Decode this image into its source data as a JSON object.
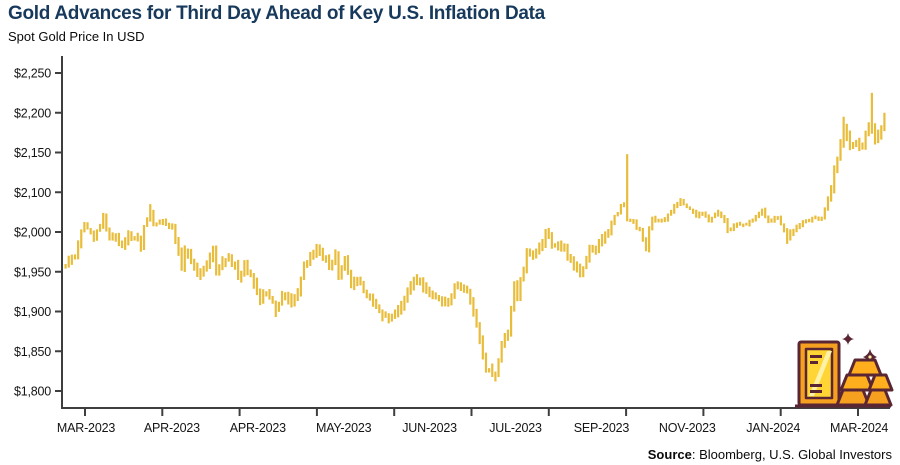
{
  "header": {
    "title": "Gold Advances for Third Day Ahead of Key U.S. Inflation Data",
    "subtitle": "Spot Gold Price In USD"
  },
  "source": {
    "label": "Source",
    "separator": ": ",
    "text": "Bloomberg, U.S. Global Investors"
  },
  "colors": {
    "navy": "#17395C",
    "gold_bar": "#E9BD3C",
    "axis": "#3E3E3E",
    "tick_text": "#151515",
    "icon_outline": "#5A2633",
    "icon_orange": "#F6A01F",
    "icon_amber": "#FFAF1E",
    "icon_yellow": "#FFD435",
    "icon_light": "#FFF2A6"
  },
  "icon": {
    "name": "gold-bars-icon",
    "elements": [
      "standing-gold-bar",
      "stacked-gold-ingots",
      "sparkles"
    ]
  },
  "chart_data": {
    "type": "bar",
    "subtype": "daily-high-low-range",
    "title": "Gold Advances for Third Day Ahead of Key U.S. Inflation Data",
    "subtitle_ylabel": "Spot Gold Price In USD",
    "grid": false,
    "legend": "none",
    "y_ticks": [
      {
        "label": "$2,250",
        "value": 2250
      },
      {
        "label": "$2,200",
        "value": 2200
      },
      {
        "label": "$2,150",
        "value": 2150
      },
      {
        "label": "$2,100",
        "value": 2100
      },
      {
        "label": "$2,000",
        "value": 2000
      },
      {
        "label": "$1,950",
        "value": 1950
      },
      {
        "label": "$1,900",
        "value": 1900
      },
      {
        "label": "$1,850",
        "value": 1850
      },
      {
        "label": "$1,800",
        "value": 1800
      }
    ],
    "y_axis_note": "tick labels evenly spaced as printed; $2,050 label is skipped on the original",
    "x_tick_labels": [
      "MAR-2023",
      "APR-2023",
      "APR-2023",
      "MAY-2023",
      "JUN-2023",
      "JUL-2023",
      "SEP-2023",
      "NOV-2023",
      "JAN-2024",
      "MAR-2024"
    ],
    "x_range": {
      "start_date": "2023-03-28",
      "end_date": "2024-03-27"
    },
    "series": [
      {
        "name": "Spot Gold Price (USD)",
        "point_format": [
          "date",
          "close",
          "intraday_high_optional",
          "intraday_low_optional"
        ],
        "points": [
          [
            "2023-03-28",
            1957
          ],
          [
            "2023-03-29",
            1964
          ],
          [
            "2023-03-31",
            1969
          ],
          [
            "2023-04-03",
            1984
          ],
          [
            "2023-04-05",
            2020,
            2025
          ],
          [
            "2023-04-06",
            2008
          ],
          [
            "2023-04-10",
            1991
          ],
          [
            "2023-04-12",
            2014
          ],
          [
            "2023-04-13",
            2040,
            2048
          ],
          [
            "2023-04-14",
            2004
          ],
          [
            "2023-04-17",
            1995
          ],
          [
            "2023-04-19",
            1994
          ],
          [
            "2023-04-21",
            1983
          ],
          [
            "2023-04-25",
            1997
          ],
          [
            "2023-04-28",
            1990
          ],
          [
            "2023-05-01",
            1982
          ],
          [
            "2023-05-02",
            2016
          ],
          [
            "2023-05-04",
            2050,
            2070
          ],
          [
            "2023-05-05",
            2016
          ],
          [
            "2023-05-08",
            2021
          ],
          [
            "2023-05-10",
            2030
          ],
          [
            "2023-05-12",
            2011
          ],
          [
            "2023-05-15",
            2016
          ],
          [
            "2023-05-16",
            1989
          ],
          [
            "2023-05-18",
            1957
          ],
          [
            "2023-05-19",
            1977
          ],
          [
            "2023-05-22",
            1972
          ],
          [
            "2023-05-24",
            1957
          ],
          [
            "2023-05-26",
            1946
          ],
          [
            "2023-05-30",
            1959
          ],
          [
            "2023-06-01",
            1978
          ],
          [
            "2023-06-02",
            1948
          ],
          [
            "2023-06-06",
            1963
          ],
          [
            "2023-06-08",
            1966
          ],
          [
            "2023-06-12",
            1958
          ],
          [
            "2023-06-13",
            1943
          ],
          [
            "2023-06-15",
            1958
          ],
          [
            "2023-06-20",
            1936
          ],
          [
            "2023-06-22",
            1914
          ],
          [
            "2023-06-26",
            1923
          ],
          [
            "2023-06-29",
            1903,
            null,
            1893
          ],
          [
            "2023-07-03",
            1921
          ],
          [
            "2023-07-06",
            1911
          ],
          [
            "2023-07-10",
            1925
          ],
          [
            "2023-07-12",
            1957
          ],
          [
            "2023-07-13",
            1960
          ],
          [
            "2023-07-18",
            1978,
            1985
          ],
          [
            "2023-07-20",
            1969
          ],
          [
            "2023-07-24",
            1954
          ],
          [
            "2023-07-26",
            1972
          ],
          [
            "2023-07-27",
            1945
          ],
          [
            "2023-07-31",
            1965
          ],
          [
            "2023-08-02",
            1934
          ],
          [
            "2023-08-04",
            1942
          ],
          [
            "2023-08-08",
            1925
          ],
          [
            "2023-08-11",
            1913
          ],
          [
            "2023-08-15",
            1901
          ],
          [
            "2023-08-18",
            1889,
            null,
            1885
          ],
          [
            "2023-08-22",
            1897
          ],
          [
            "2023-08-25",
            1915
          ],
          [
            "2023-08-30",
            1942
          ],
          [
            "2023-09-01",
            1940
          ],
          [
            "2023-09-05",
            1926
          ],
          [
            "2023-09-08",
            1919
          ],
          [
            "2023-09-12",
            1913
          ],
          [
            "2023-09-14",
            1911
          ],
          [
            "2023-09-18",
            1934
          ],
          [
            "2023-09-20",
            1930
          ],
          [
            "2023-09-22",
            1925
          ],
          [
            "2023-09-26",
            1900
          ],
          [
            "2023-09-28",
            1864
          ],
          [
            "2023-10-02",
            1827
          ],
          [
            "2023-10-05",
            1820,
            null,
            1812
          ],
          [
            "2023-10-09",
            1861
          ],
          [
            "2023-10-11",
            1874
          ],
          [
            "2023-10-13",
            1932
          ],
          [
            "2023-10-16",
            1919
          ],
          [
            "2023-10-19",
            1974
          ],
          [
            "2023-10-23",
            1972
          ],
          [
            "2023-10-26",
            1985
          ],
          [
            "2023-10-27",
            2006
          ],
          [
            "2023-10-31",
            1984
          ],
          [
            "2023-11-02",
            1986
          ],
          [
            "2023-11-06",
            1978
          ],
          [
            "2023-11-09",
            1958
          ],
          [
            "2023-11-13",
            1946
          ],
          [
            "2023-11-16",
            1981
          ],
          [
            "2023-11-20",
            1978
          ],
          [
            "2023-11-22",
            1990
          ],
          [
            "2023-11-24",
            2002
          ],
          [
            "2023-11-28",
            2041
          ],
          [
            "2023-12-01",
            2072,
            2075
          ],
          [
            "2023-12-04",
            2029,
            2148
          ],
          [
            "2023-12-06",
            2025
          ],
          [
            "2023-12-08",
            2004
          ],
          [
            "2023-12-12",
            1981
          ],
          [
            "2023-12-14",
            2036
          ],
          [
            "2023-12-18",
            2027
          ],
          [
            "2023-12-20",
            2031
          ],
          [
            "2023-12-22",
            2053
          ],
          [
            "2023-12-27",
            2078
          ],
          [
            "2023-12-29",
            2063
          ],
          [
            "2024-01-03",
            2041
          ],
          [
            "2024-01-05",
            2045
          ],
          [
            "2024-01-09",
            2030
          ],
          [
            "2024-01-12",
            2049
          ],
          [
            "2024-01-16",
            2028
          ],
          [
            "2024-01-17",
            2006
          ],
          [
            "2024-01-22",
            2022
          ],
          [
            "2024-01-25",
            2021
          ],
          [
            "2024-01-30",
            2037
          ],
          [
            "2024-02-01",
            2055
          ],
          [
            "2024-02-05",
            2025
          ],
          [
            "2024-02-08",
            2034
          ],
          [
            "2024-02-13",
            1993,
            null,
            1985
          ],
          [
            "2024-02-16",
            2013
          ],
          [
            "2024-02-20",
            2024
          ],
          [
            "2024-02-23",
            2035
          ],
          [
            "2024-02-28",
            2035
          ],
          [
            "2024-03-01",
            2083
          ],
          [
            "2024-03-05",
            2128
          ],
          [
            "2024-03-07",
            2160
          ],
          [
            "2024-03-08",
            2179,
            2195
          ],
          [
            "2024-03-12",
            2158
          ],
          [
            "2024-03-14",
            2162
          ],
          [
            "2024-03-18",
            2160
          ],
          [
            "2024-03-20",
            2186
          ],
          [
            "2024-03-21",
            2181,
            2225
          ],
          [
            "2024-03-22",
            2166
          ],
          [
            "2024-03-25",
            2172
          ],
          [
            "2024-03-27",
            2195,
            2200
          ]
        ]
      }
    ]
  }
}
